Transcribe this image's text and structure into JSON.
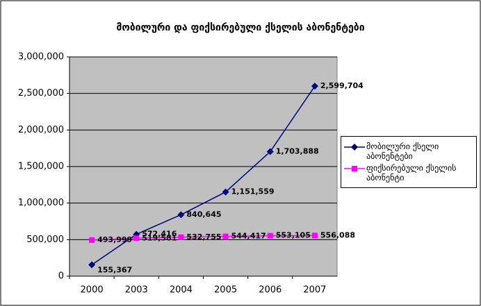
{
  "chart_data": {
    "type": "line",
    "title": "მობილური და ფიქსირებული ქსელის აბონენტები",
    "categories": [
      "2000",
      "2003",
      "2004",
      "2005",
      "2006",
      "2007"
    ],
    "series": [
      {
        "name": "მობილური ქსელი აბონენტები",
        "color": "#000080",
        "marker": "diamond",
        "values": [
          155367,
          572416,
          840645,
          1151559,
          1703888,
          2599704
        ],
        "value_labels": [
          "155,367",
          "572,416",
          "840,645",
          "1,151,559",
          "1,703,888",
          "2,599,704"
        ]
      },
      {
        "name": "ფიქსირებული ქსელის აბონენტი",
        "color": "#ff00ff",
        "marker": "square",
        "values": [
          493999,
          519581,
          532755,
          544417,
          553105,
          556088
        ],
        "value_labels": [
          "493,999",
          "519,581",
          "532,755",
          "544,417",
          "553,105",
          "556,088"
        ]
      }
    ],
    "ylim": [
      0,
      3000000
    ],
    "yticks": [
      {
        "value": 0,
        "label": "0"
      },
      {
        "value": 500000,
        "label": "500,000"
      },
      {
        "value": 1000000,
        "label": "1,000,000"
      },
      {
        "value": 1500000,
        "label": "1,500,000"
      },
      {
        "value": 2000000,
        "label": "2,000,000"
      },
      {
        "value": 2500000,
        "label": "2,500,000"
      },
      {
        "value": 3000000,
        "label": "3,000,000"
      }
    ],
    "grid": true,
    "legend": "right",
    "plot_background": "#c0c0c0"
  }
}
